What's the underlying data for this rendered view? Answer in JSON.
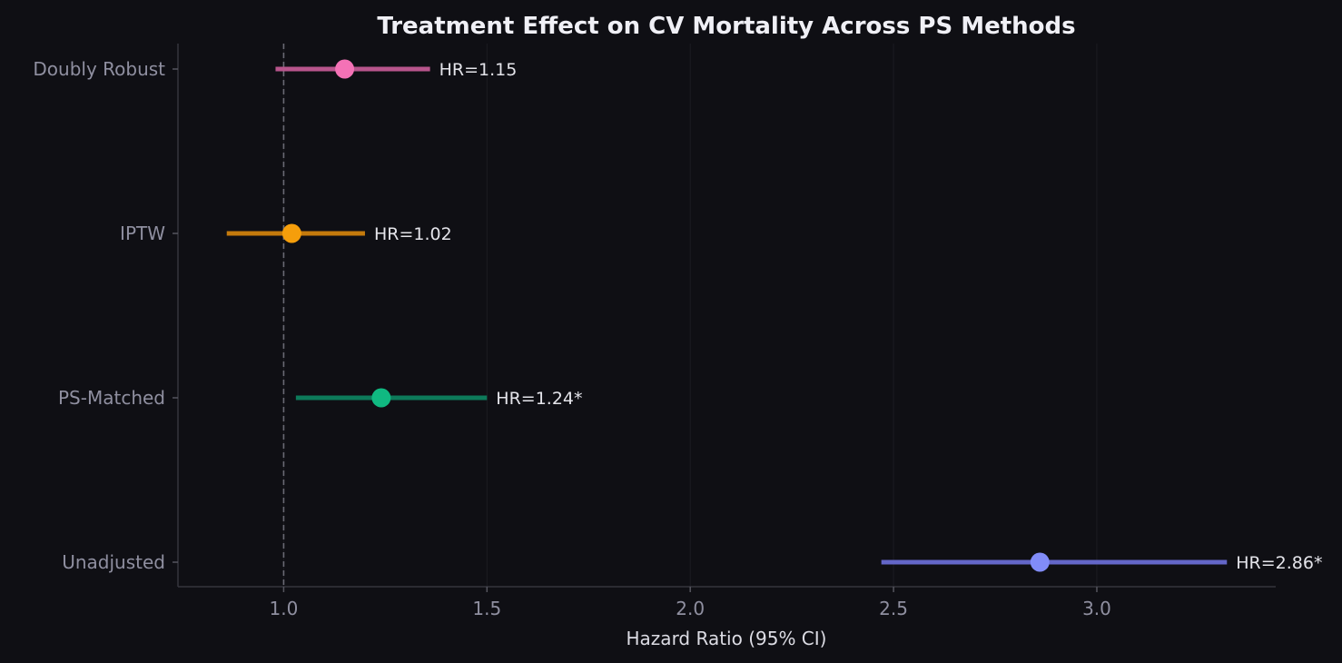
{
  "chart_data": {
    "type": "forest",
    "title": "Treatment Effect on CV Mortality Across PS Methods",
    "xlabel": "Hazard Ratio (95% CI)",
    "xlim": [
      0.74,
      3.44
    ],
    "x_ticks": [
      1.0,
      1.5,
      2.0,
      2.5,
      3.0
    ],
    "x_tick_labels": [
      "1.0",
      "1.5",
      "2.0",
      "2.5",
      "3.0"
    ],
    "reference_line": 1.0,
    "grid": "vertical, faint",
    "rows": [
      {
        "label": "Unadjusted",
        "hr": 2.86,
        "ci_low": 2.47,
        "ci_high": 3.32,
        "annotation": "HR=2.86*",
        "color": "#6366c8",
        "marker_color": "#818cf8"
      },
      {
        "label": "PS-Matched",
        "hr": 1.24,
        "ci_low": 1.03,
        "ci_high": 1.5,
        "annotation": "HR=1.24*",
        "color": "#0d7a5a",
        "marker_color": "#10b981"
      },
      {
        "label": "IPTW",
        "hr": 1.02,
        "ci_low": 0.86,
        "ci_high": 1.2,
        "annotation": "HR=1.02",
        "color": "#c47a0c",
        "marker_color": "#f59e0b"
      },
      {
        "label": "Doubly Robust",
        "hr": 1.15,
        "ci_low": 0.98,
        "ci_high": 1.36,
        "annotation": "HR=1.15",
        "color": "#b8558c",
        "marker_color": "#f472b6"
      }
    ]
  }
}
